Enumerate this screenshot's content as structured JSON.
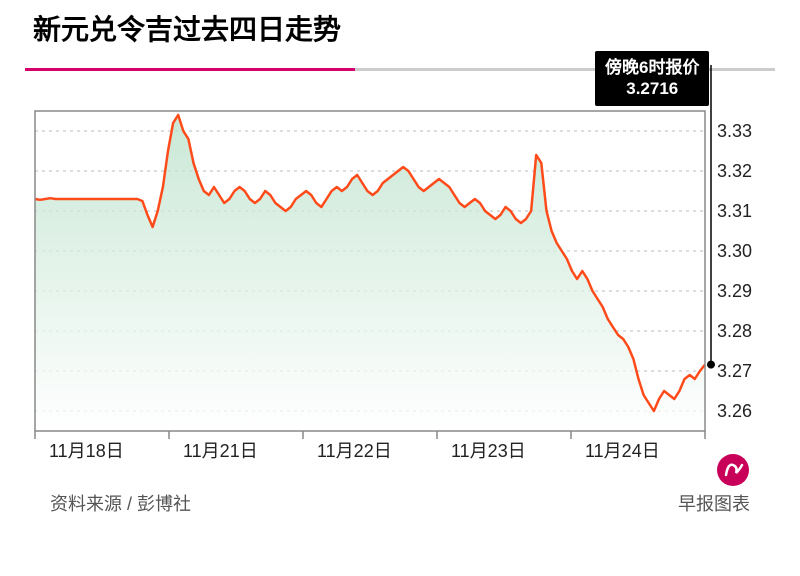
{
  "chart": {
    "type": "line-area",
    "title": "新元兑令吉过去四日走势",
    "title_fontsize": 28,
    "background_color": "#ffffff",
    "plot_border_color": "#888888",
    "grid_color": "#bbbbbb",
    "grid_dash": "3,4",
    "line_color": "#ff4a1a",
    "line_width": 2.5,
    "area_gradient_top": "#b8e0c8",
    "area_gradient_bottom": "#ffffff",
    "accent_color": "#d6006c",
    "x_axis": {
      "labels": [
        "11月18日",
        "11月21日",
        "11月22日",
        "11月23日",
        "11月24日"
      ],
      "divisions": 5
    },
    "y_axis": {
      "min": 3.255,
      "max": 3.335,
      "ticks": [
        3.26,
        3.27,
        3.28,
        3.29,
        3.3,
        3.31,
        3.32,
        3.33
      ],
      "tick_labels": [
        "3.26",
        "3.27",
        "3.28",
        "3.29",
        "3.30",
        "3.31",
        "3.32",
        "3.33"
      ]
    },
    "callout": {
      "line1": "傍晚6时报价",
      "line2": "3.2716",
      "bg": "#000000",
      "color": "#ffffff",
      "fontsize": 17
    },
    "marker": {
      "value": 3.2716,
      "color": "#000000",
      "radius": 4
    },
    "series": [
      3.313,
      3.3128,
      3.313,
      3.3132,
      3.313,
      3.313,
      3.313,
      3.313,
      3.313,
      3.313,
      3.313,
      3.313,
      3.313,
      3.313,
      3.313,
      3.313,
      3.313,
      3.313,
      3.313,
      3.313,
      3.313,
      3.3125,
      3.309,
      3.306,
      3.31,
      3.316,
      3.325,
      3.332,
      3.334,
      3.33,
      3.328,
      3.322,
      3.318,
      3.315,
      3.314,
      3.316,
      3.314,
      3.312,
      3.313,
      3.315,
      3.316,
      3.315,
      3.313,
      3.312,
      3.313,
      3.315,
      3.314,
      3.312,
      3.311,
      3.31,
      3.311,
      3.313,
      3.314,
      3.315,
      3.314,
      3.312,
      3.311,
      3.313,
      3.315,
      3.316,
      3.315,
      3.316,
      3.318,
      3.319,
      3.317,
      3.315,
      3.314,
      3.315,
      3.317,
      3.318,
      3.319,
      3.32,
      3.321,
      3.32,
      3.318,
      3.316,
      3.315,
      3.316,
      3.317,
      3.318,
      3.317,
      3.316,
      3.314,
      3.312,
      3.311,
      3.312,
      3.313,
      3.312,
      3.31,
      3.309,
      3.308,
      3.309,
      3.311,
      3.31,
      3.308,
      3.307,
      3.308,
      3.31,
      3.324,
      3.322,
      3.31,
      3.305,
      3.302,
      3.3,
      3.298,
      3.295,
      3.293,
      3.295,
      3.293,
      3.29,
      3.288,
      3.286,
      3.283,
      3.281,
      3.279,
      3.278,
      3.276,
      3.273,
      3.268,
      3.264,
      3.262,
      3.26,
      3.263,
      3.265,
      3.264,
      3.263,
      3.265,
      3.268,
      3.269,
      3.268,
      3.27,
      3.2716
    ]
  },
  "footer": {
    "source_label": "资料来源 / 彭博社",
    "credit_label": "早报图表"
  }
}
